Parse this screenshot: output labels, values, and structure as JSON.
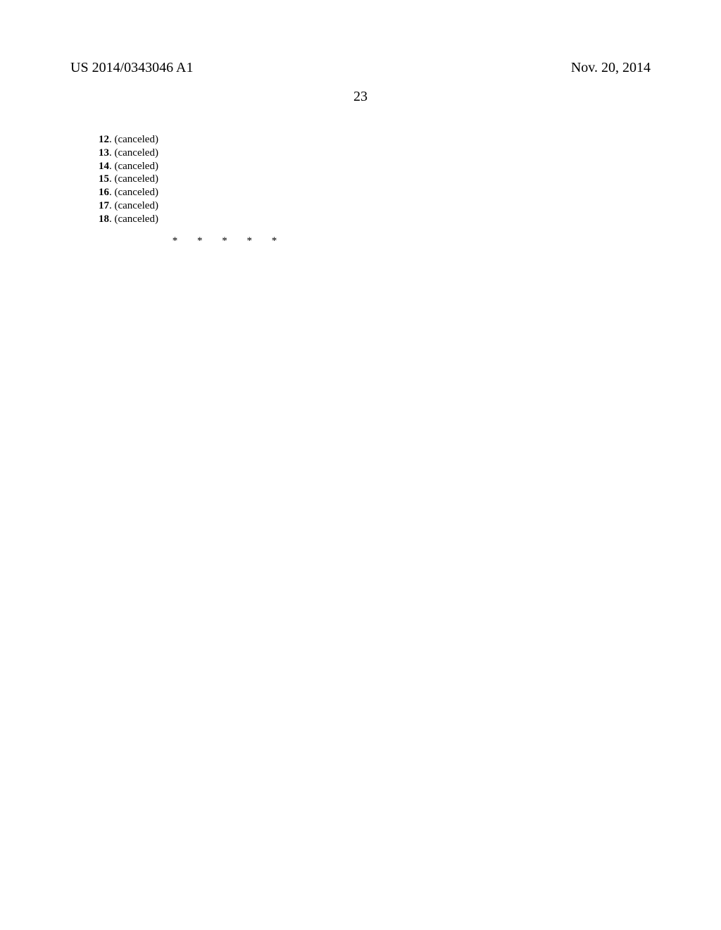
{
  "header": {
    "publication_number": "US 2014/0343046 A1",
    "publication_date": "Nov. 20, 2014",
    "page_number": "23"
  },
  "claims": [
    {
      "num": "12",
      "status": "(canceled)"
    },
    {
      "num": "13",
      "status": "(canceled)"
    },
    {
      "num": "14",
      "status": "(canceled)"
    },
    {
      "num": "15",
      "status": "(canceled)"
    },
    {
      "num": "16",
      "status": "(canceled)"
    },
    {
      "num": "17",
      "status": "(canceled)"
    },
    {
      "num": "18",
      "status": "(canceled)"
    }
  ],
  "separator": "*   *   *   *   *",
  "style": {
    "background_color": "#ffffff",
    "text_color": "#000000",
    "font_family": "Times New Roman",
    "header_fontsize": 20,
    "page_number_fontsize": 20,
    "claim_fontsize": 15,
    "separator_fontsize": 15
  }
}
